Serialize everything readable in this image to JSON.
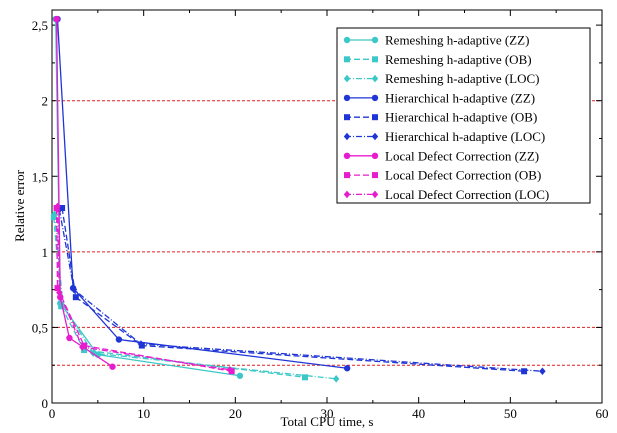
{
  "chart_data": {
    "type": "line",
    "title": "",
    "xlabel": "Total CPU time, s",
    "ylabel": "Relative error",
    "xlim": [
      0,
      60
    ],
    "ylim": [
      0,
      2.6
    ],
    "x_ticks": [
      0,
      10,
      20,
      30,
      40,
      50,
      60
    ],
    "x_tick_labels": [
      "0",
      "10",
      "20",
      "30",
      "40",
      "50",
      "60"
    ],
    "y_ticks": [
      0,
      0.5,
      1,
      1.5,
      2,
      2.5
    ],
    "y_tick_labels": [
      "0",
      "0,5",
      "1",
      "1,5",
      "2",
      "2,5"
    ],
    "reference_lines": [
      0.25,
      0.5,
      1,
      2
    ],
    "reference_line_color": "#e02020",
    "legend_position": "top-right",
    "series": [
      {
        "name": "Remeshing h-adaptive (ZZ)",
        "color": "#3cc8c8",
        "marker": "circle",
        "dash": "solid",
        "points": [
          [
            0.4,
            2.54
          ],
          [
            0.9,
            0.66
          ],
          [
            5.0,
            0.32
          ],
          [
            20.5,
            0.18
          ]
        ]
      },
      {
        "name": "Remeshing h-adaptive (OB)",
        "color": "#3cc8c8",
        "marker": "square",
        "dash": "dashed",
        "points": [
          [
            0.2,
            1.23
          ],
          [
            1.0,
            0.64
          ],
          [
            3.5,
            0.35
          ],
          [
            27.6,
            0.17
          ]
        ]
      },
      {
        "name": "Remeshing h-adaptive (LOC)",
        "color": "#3cc8c8",
        "marker": "diamond",
        "dash": "dashdot",
        "points": [
          [
            0.3,
            1.25
          ],
          [
            1.2,
            0.64
          ],
          [
            4.5,
            0.33
          ],
          [
            31.0,
            0.16
          ]
        ]
      },
      {
        "name": "Hierarchical h-adaptive (ZZ)",
        "color": "#1f35d6",
        "marker": "circle",
        "dash": "solid",
        "points": [
          [
            0.6,
            2.54
          ],
          [
            2.3,
            0.76
          ],
          [
            7.3,
            0.42
          ],
          [
            32.2,
            0.23
          ]
        ]
      },
      {
        "name": "Hierarchical h-adaptive (OB)",
        "color": "#1f35d6",
        "marker": "square",
        "dash": "dashed",
        "points": [
          [
            1.1,
            1.29
          ],
          [
            2.6,
            0.7
          ],
          [
            9.8,
            0.38
          ],
          [
            51.5,
            0.21
          ]
        ]
      },
      {
        "name": "Hierarchical h-adaptive (LOC)",
        "color": "#1f35d6",
        "marker": "diamond",
        "dash": "dashdot",
        "points": [
          [
            0.8,
            1.28
          ],
          [
            2.4,
            0.75
          ],
          [
            9.7,
            0.39
          ],
          [
            53.5,
            0.21
          ]
        ]
      },
      {
        "name": "Local Defect Correction (ZZ)",
        "color": "#e81ccf",
        "marker": "circle",
        "dash": "solid",
        "points": [
          [
            0.5,
            2.54
          ],
          [
            0.9,
            0.7
          ],
          [
            1.9,
            0.43
          ],
          [
            6.6,
            0.24
          ]
        ]
      },
      {
        "name": "Local Defect Correction (OB)",
        "color": "#e81ccf",
        "marker": "square",
        "dash": "dashed",
        "points": [
          [
            0.5,
            1.29
          ],
          [
            0.6,
            0.76
          ],
          [
            3.5,
            0.38
          ],
          [
            19.6,
            0.21
          ]
        ]
      },
      {
        "name": "Local Defect Correction (LOC)",
        "color": "#e81ccf",
        "marker": "diamond",
        "dash": "dashdot",
        "points": [
          [
            0.6,
            1.3
          ],
          [
            0.8,
            0.73
          ],
          [
            3.3,
            0.37
          ],
          [
            19.4,
            0.22
          ]
        ]
      }
    ]
  }
}
